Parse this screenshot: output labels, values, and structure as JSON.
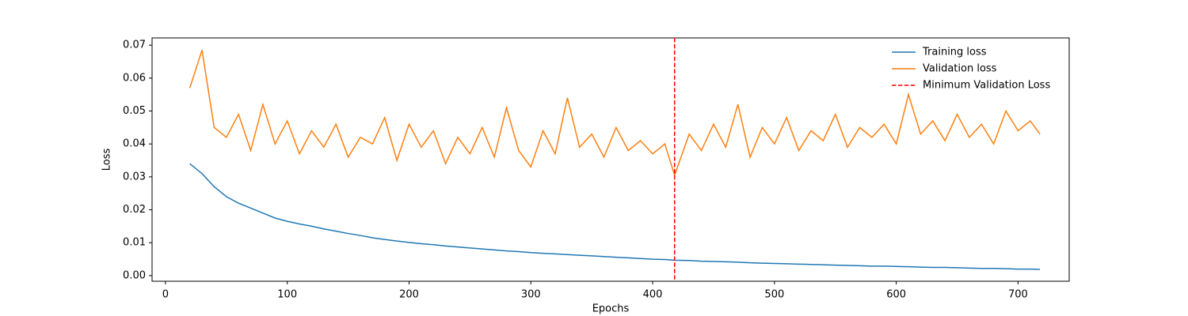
{
  "chart_data": {
    "type": "line",
    "xlabel": "Epochs",
    "ylabel": "Loss",
    "x": [
      20,
      30,
      40,
      50,
      60,
      70,
      80,
      90,
      100,
      110,
      120,
      130,
      140,
      150,
      160,
      170,
      180,
      190,
      200,
      210,
      220,
      230,
      240,
      250,
      260,
      270,
      280,
      290,
      300,
      310,
      320,
      330,
      340,
      350,
      360,
      370,
      380,
      390,
      400,
      410,
      418,
      430,
      440,
      450,
      460,
      470,
      480,
      490,
      500,
      510,
      520,
      530,
      540,
      550,
      560,
      570,
      580,
      590,
      600,
      610,
      620,
      630,
      640,
      650,
      660,
      670,
      680,
      690,
      700,
      710,
      718
    ],
    "series": [
      {
        "name": "Training loss",
        "color": "#1f77b4",
        "values": [
          0.034,
          0.031,
          0.027,
          0.024,
          0.022,
          0.0205,
          0.019,
          0.0175,
          0.0165,
          0.0157,
          0.015,
          0.0142,
          0.0135,
          0.0128,
          0.0122,
          0.0115,
          0.011,
          0.0105,
          0.0101,
          0.0097,
          0.0094,
          0.009,
          0.0087,
          0.0084,
          0.0081,
          0.0078,
          0.0075,
          0.0073,
          0.007,
          0.0068,
          0.0066,
          0.0064,
          0.0062,
          0.006,
          0.0058,
          0.0056,
          0.0054,
          0.0052,
          0.005,
          0.0049,
          0.0047,
          0.0046,
          0.0044,
          0.0043,
          0.0042,
          0.0041,
          0.0039,
          0.0038,
          0.0037,
          0.0036,
          0.0035,
          0.0034,
          0.0033,
          0.0032,
          0.0031,
          0.003,
          0.0029,
          0.0029,
          0.0028,
          0.0027,
          0.0026,
          0.0025,
          0.0025,
          0.0024,
          0.0023,
          0.0022,
          0.0022,
          0.0021,
          0.002,
          0.002,
          0.0019
        ]
      },
      {
        "name": "Validation loss",
        "color": "#ff7f0e",
        "values": [
          0.057,
          0.0685,
          0.045,
          0.042,
          0.049,
          0.038,
          0.052,
          0.04,
          0.047,
          0.037,
          0.044,
          0.039,
          0.046,
          0.036,
          0.042,
          0.04,
          0.048,
          0.035,
          0.046,
          0.039,
          0.044,
          0.034,
          0.042,
          0.037,
          0.045,
          0.036,
          0.051,
          0.038,
          0.033,
          0.044,
          0.037,
          0.054,
          0.039,
          0.043,
          0.036,
          0.045,
          0.038,
          0.041,
          0.037,
          0.04,
          0.0305,
          0.043,
          0.038,
          0.046,
          0.039,
          0.052,
          0.036,
          0.045,
          0.04,
          0.048,
          0.038,
          0.044,
          0.041,
          0.049,
          0.039,
          0.045,
          0.042,
          0.046,
          0.04,
          0.055,
          0.043,
          0.047,
          0.041,
          0.049,
          0.042,
          0.046,
          0.04,
          0.05,
          0.044,
          0.047,
          0.043
        ]
      }
    ],
    "vline": {
      "name": "Minimum Validation Loss",
      "x": 418,
      "color": "#ff0000"
    },
    "xlim": [
      -11,
      742
    ],
    "ylim": [
      -0.0017,
      0.0722
    ],
    "xticks": [
      0,
      100,
      200,
      300,
      400,
      500,
      600,
      700
    ],
    "yticks": [
      {
        "value": 0,
        "label": "0.00"
      },
      {
        "value": 0.01,
        "label": "0.01"
      },
      {
        "value": 0.02,
        "label": "0.02"
      },
      {
        "value": 0.03,
        "label": "0.03"
      },
      {
        "value": 0.04,
        "label": "0.04"
      },
      {
        "value": 0.05,
        "label": "0.05"
      },
      {
        "value": 0.06,
        "label": "0.06"
      },
      {
        "value": 0.07,
        "label": "0.07"
      }
    ],
    "legend": "upper right",
    "grid": false
  }
}
